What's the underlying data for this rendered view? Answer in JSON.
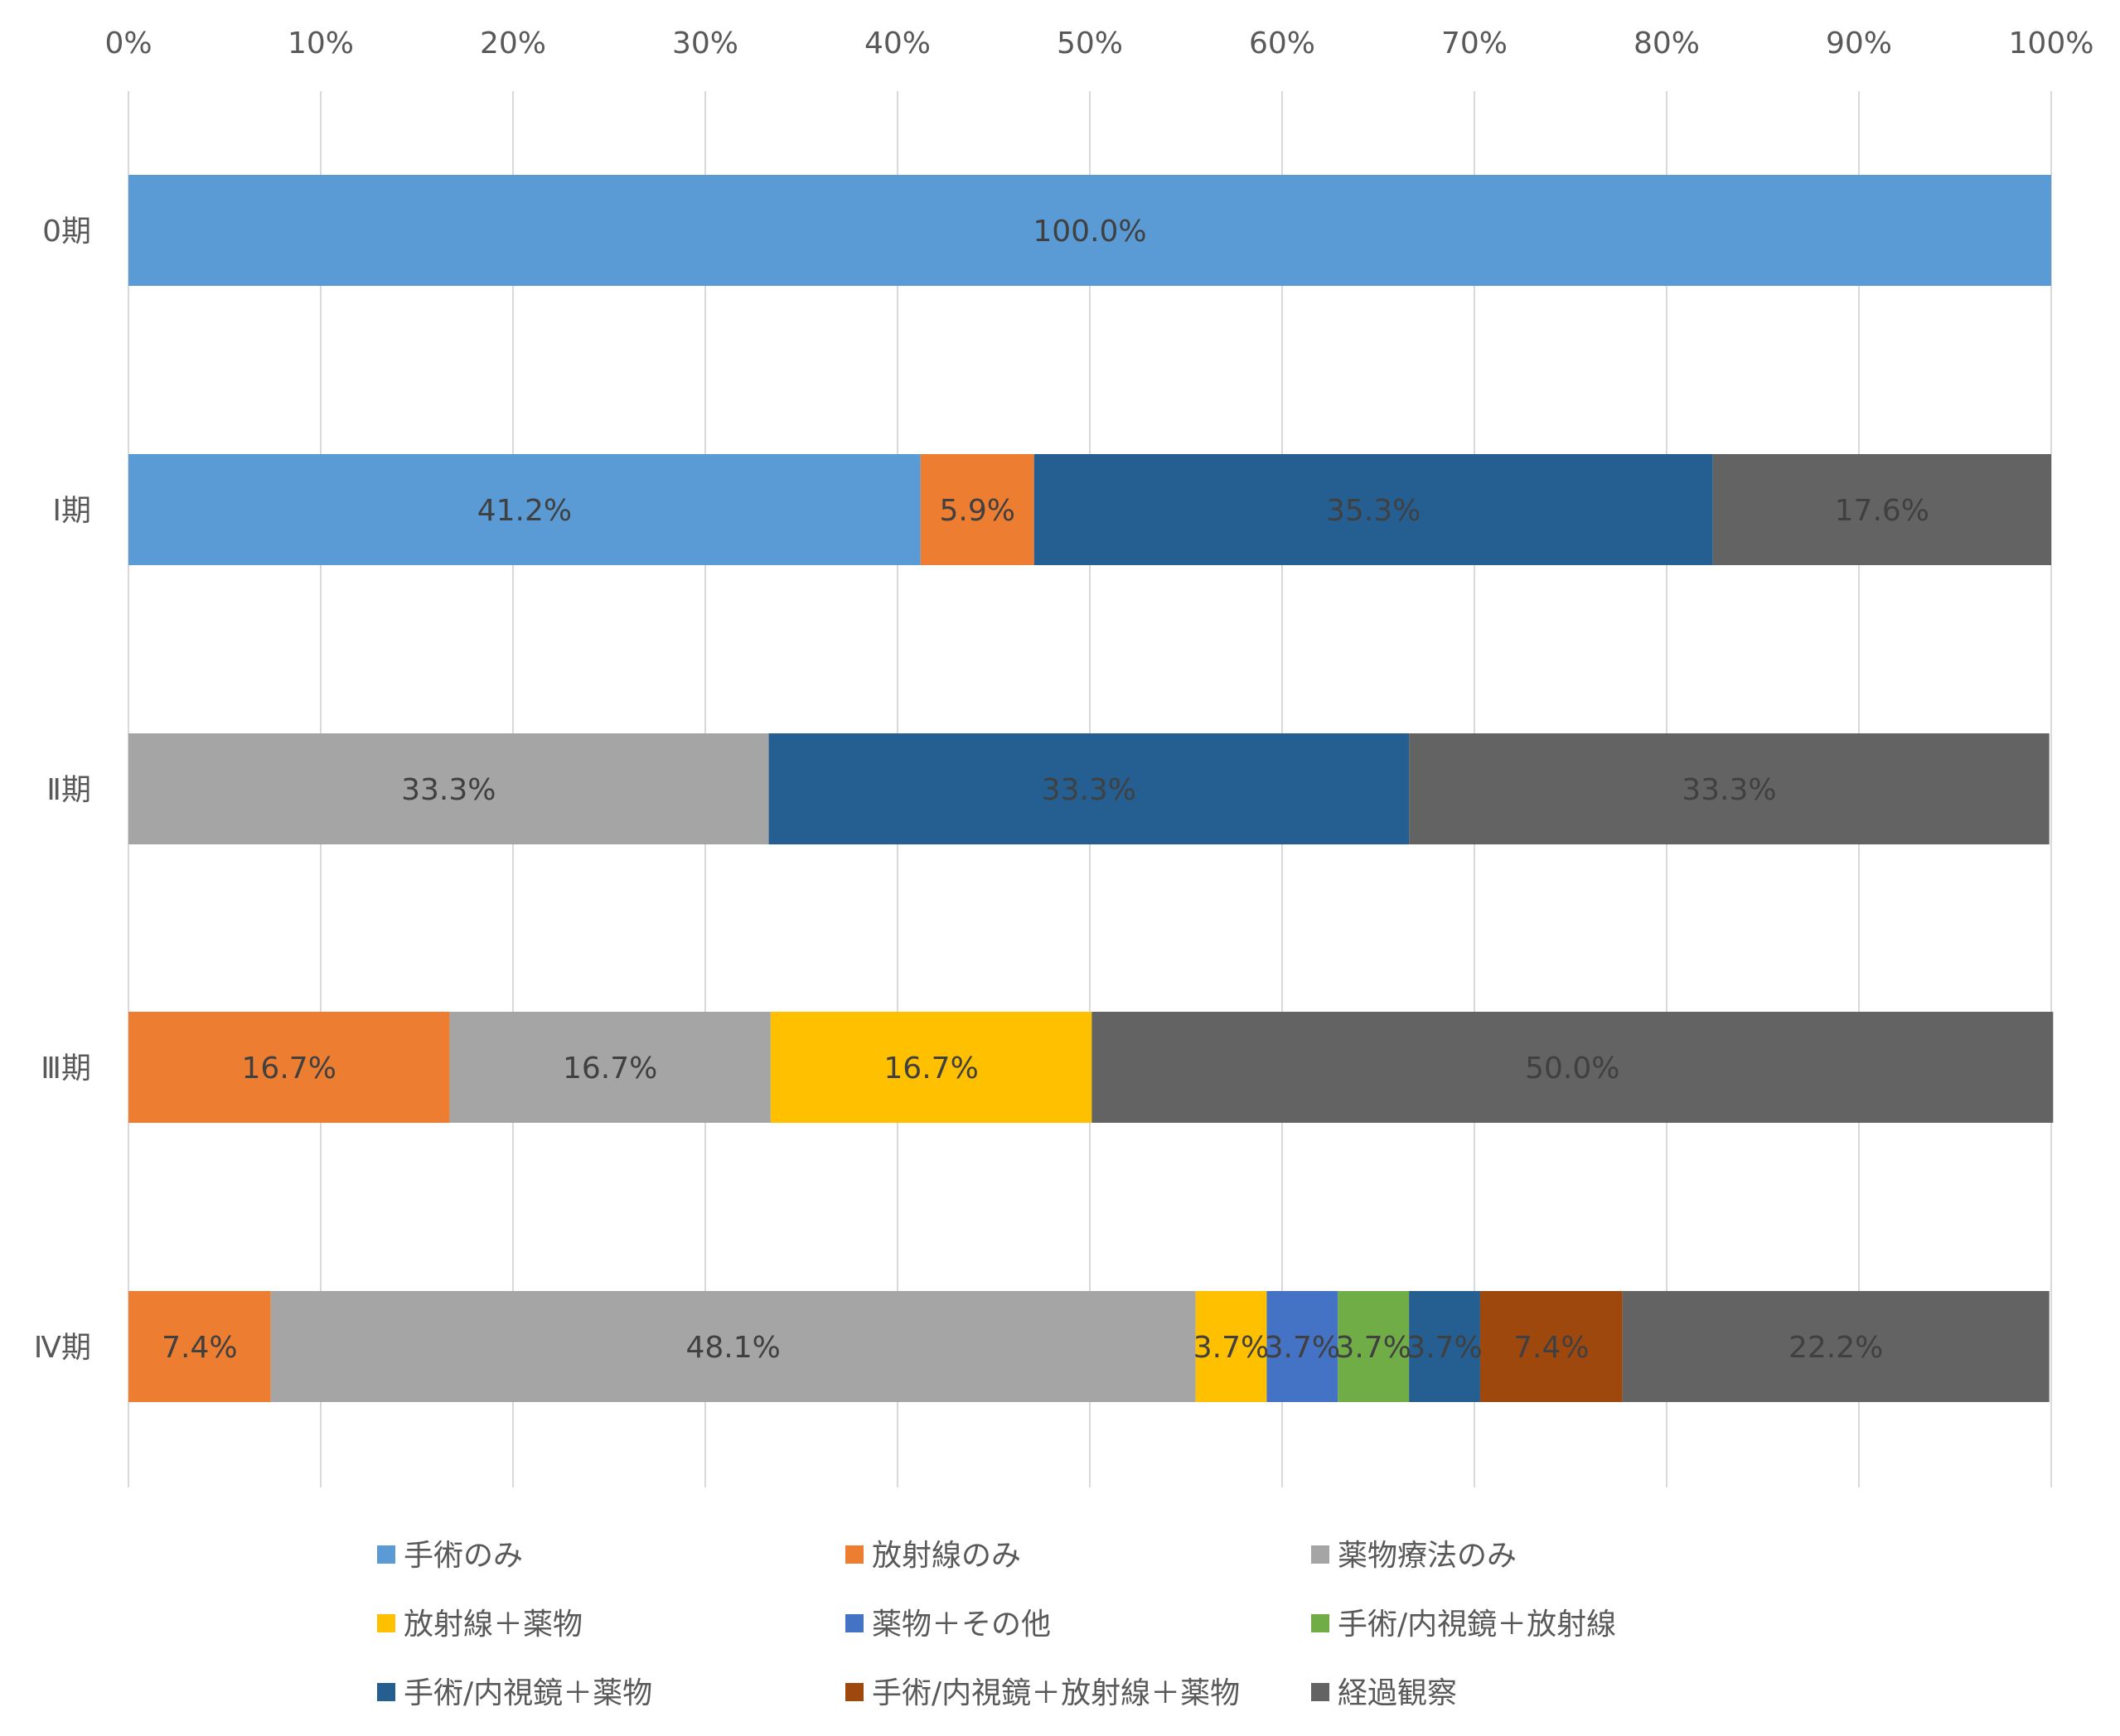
{
  "chart_data": {
    "type": "bar",
    "orientation": "horizontal",
    "stacked": "percent",
    "title": "",
    "xlabel": "",
    "ylabel": "",
    "xlim": [
      0,
      100
    ],
    "x_ticks": [
      "0%",
      "10%",
      "20%",
      "30%",
      "40%",
      "50%",
      "60%",
      "70%",
      "80%",
      "90%",
      "100%"
    ],
    "grid": true,
    "legend_position": "bottom",
    "categories": [
      "0期",
      "Ⅰ期",
      "Ⅱ期",
      "Ⅲ期",
      "Ⅳ期"
    ],
    "series": [
      {
        "name": "手術のみ",
        "color": "#5B9BD5",
        "values": [
          100.0,
          41.2,
          null,
          null,
          null
        ],
        "labels": [
          "100.0%",
          "41.2%",
          null,
          null,
          null
        ]
      },
      {
        "name": "放射線のみ",
        "color": "#ED7D31",
        "values": [
          null,
          5.9,
          null,
          16.7,
          7.4
        ],
        "labels": [
          null,
          "5.9%",
          null,
          "16.7%",
          "7.4%"
        ]
      },
      {
        "name": "薬物療法のみ",
        "color": "#A5A5A5",
        "values": [
          null,
          null,
          33.3,
          16.7,
          48.1
        ],
        "labels": [
          null,
          null,
          "33.3%",
          "16.7%",
          "48.1%"
        ]
      },
      {
        "name": "放射線＋薬物",
        "color": "#FFC000",
        "values": [
          null,
          null,
          null,
          16.7,
          3.7
        ],
        "labels": [
          null,
          null,
          null,
          "16.7%",
          "3.7%"
        ]
      },
      {
        "name": "薬物＋その他",
        "color": "#4472C4",
        "values": [
          null,
          null,
          null,
          null,
          3.7
        ],
        "labels": [
          null,
          null,
          null,
          null,
          "3.7%"
        ]
      },
      {
        "name": "手術/内視鏡＋放射線",
        "color": "#70AD47",
        "values": [
          null,
          null,
          null,
          null,
          3.7
        ],
        "labels": [
          null,
          null,
          null,
          null,
          "3.7%"
        ]
      },
      {
        "name": "手術/内視鏡＋薬物",
        "color": "#255E91",
        "values": [
          null,
          35.3,
          33.3,
          null,
          3.7
        ],
        "labels": [
          null,
          "35.3%",
          "33.3%",
          null,
          "3.7%"
        ]
      },
      {
        "name": "手術/内視鏡＋放射線＋薬物",
        "color": "#9E480E",
        "values": [
          null,
          null,
          null,
          null,
          7.4
        ],
        "labels": [
          null,
          null,
          null,
          null,
          "7.4%"
        ]
      },
      {
        "name": "経過観察",
        "color": "#636363",
        "values": [
          null,
          17.6,
          33.3,
          50.0,
          22.2
        ],
        "labels": [
          null,
          "17.6%",
          "33.3%",
          "50.0%",
          "22.2%"
        ]
      }
    ]
  }
}
